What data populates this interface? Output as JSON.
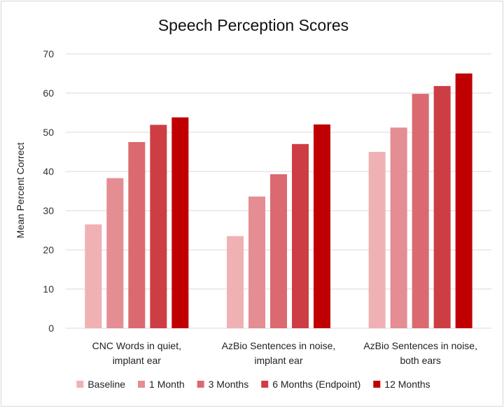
{
  "chart_data": {
    "type": "bar",
    "title": "Speech Perception Scores",
    "ylabel": "Mean Percent Correct",
    "xlabel": "",
    "ylim": [
      0,
      70
    ],
    "yticks": [
      0,
      10,
      20,
      30,
      40,
      50,
      60,
      70
    ],
    "grid": true,
    "legend_position": "bottom",
    "categories": [
      [
        "CNC Words in quiet,",
        "implant ear"
      ],
      [
        "AzBio Sentences in noise,",
        "implant ear"
      ],
      [
        "AzBio Sentences in noise,",
        "both ears"
      ]
    ],
    "series": [
      {
        "name": "Baseline",
        "color": "#efb1b4",
        "values": [
          26.5,
          23.5,
          45
        ]
      },
      {
        "name": "1 Month",
        "color": "#e48d92",
        "values": [
          38.3,
          33.6,
          51.2
        ]
      },
      {
        "name": "3 Months",
        "color": "#da6a70",
        "values": [
          47.5,
          39.3,
          59.8
        ]
      },
      {
        "name": "6 Months (Endpoint)",
        "color": "#cd3e44",
        "values": [
          51.9,
          47,
          61.8
        ]
      },
      {
        "name": "12 Months",
        "color": "#c00000",
        "values": [
          53.8,
          52,
          65
        ]
      }
    ]
  }
}
